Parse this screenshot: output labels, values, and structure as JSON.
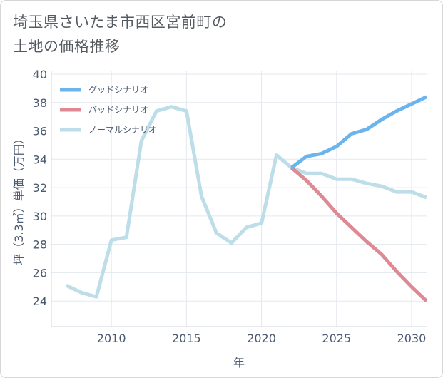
{
  "chart_data": {
    "type": "line",
    "title_lines": [
      "埼玉県さいたま市西区宮前町の",
      "土地の価格推移"
    ],
    "xlabel": "年",
    "ylabel": "坪（3.3㎡）単価（万円）",
    "xlim": [
      2006,
      2031
    ],
    "ylim": [
      22.2,
      40.2
    ],
    "x_ticks": [
      2010,
      2015,
      2020,
      2025,
      2030
    ],
    "y_ticks": [
      24,
      26,
      28,
      30,
      32,
      34,
      36,
      38,
      40
    ],
    "legend_position": "top-left",
    "series": [
      {
        "name": "グッドシナリオ",
        "color": "#6cb4ec",
        "x": [
          2022,
          2023,
          2024,
          2025,
          2026,
          2027,
          2028,
          2029,
          2030,
          2031
        ],
        "values": [
          33.4,
          34.2,
          34.4,
          34.9,
          35.8,
          36.1,
          36.8,
          37.4,
          37.9,
          38.4
        ]
      },
      {
        "name": "バッドシナリオ",
        "color": "#dd8a94",
        "x": [
          2022,
          2023,
          2024,
          2025,
          2026,
          2027,
          2028,
          2029,
          2030,
          2031
        ],
        "values": [
          33.4,
          32.5,
          31.4,
          30.2,
          29.2,
          28.2,
          27.3,
          26.1,
          25.0,
          24.0
        ]
      },
      {
        "name": "ノーマルシナリオ",
        "color": "#bddde9",
        "x": [
          2007,
          2008,
          2009,
          2010,
          2011,
          2012,
          2013,
          2014,
          2015,
          2016,
          2017,
          2018,
          2019,
          2020,
          2021,
          2022,
          2023,
          2024,
          2025,
          2026,
          2027,
          2028,
          2029,
          2030,
          2031
        ],
        "values": [
          25.1,
          24.6,
          24.3,
          28.3,
          28.5,
          35.3,
          37.4,
          37.7,
          37.4,
          31.4,
          28.8,
          28.1,
          29.2,
          29.5,
          34.3,
          33.4,
          33.0,
          33.0,
          32.6,
          32.6,
          32.3,
          32.1,
          31.7,
          31.7,
          31.3
        ]
      }
    ]
  }
}
